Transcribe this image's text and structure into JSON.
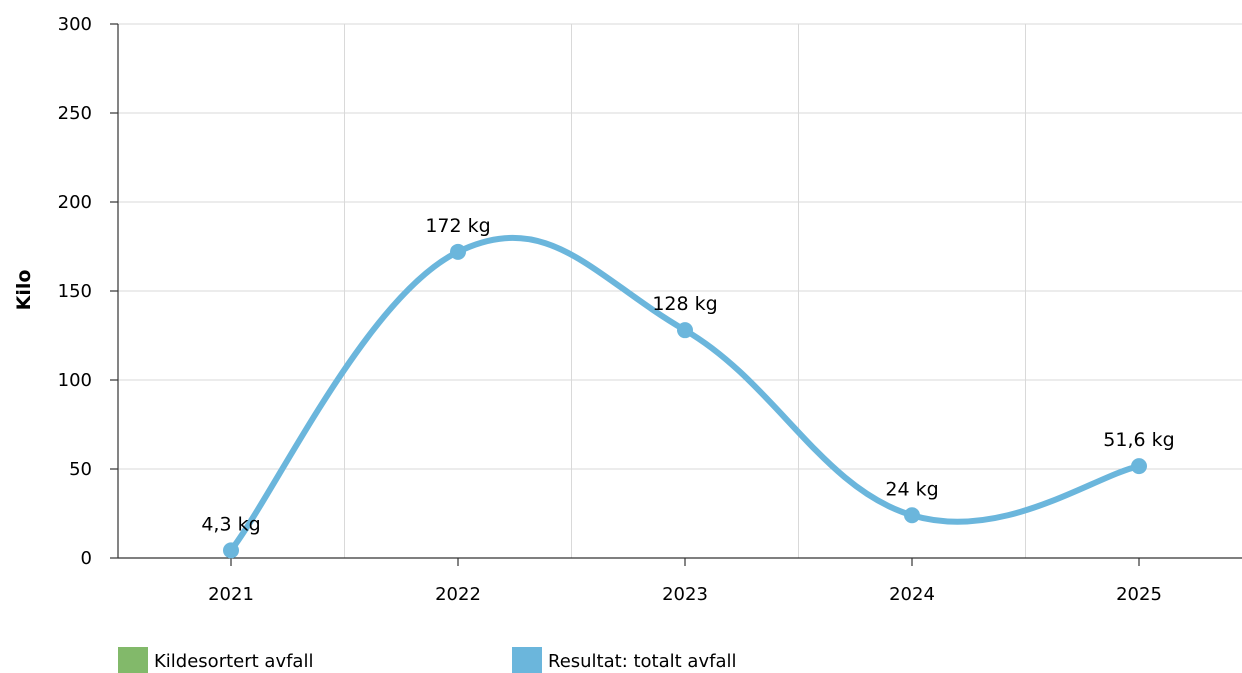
{
  "chart_data": {
    "type": "line",
    "ylabel": "Kilo",
    "xlabel": "",
    "ylim": [
      0,
      300
    ],
    "yticks": [
      0,
      50,
      100,
      150,
      200,
      250,
      300
    ],
    "x": [
      "2021",
      "2022",
      "2023",
      "2024",
      "2025"
    ],
    "series": [
      {
        "name": "Resultat: totalt avfall",
        "values": [
          4.3,
          172,
          128,
          24,
          51.6
        ],
        "labels": [
          "4,3 kg",
          "172 kg",
          "128 kg",
          "24 kg",
          "51,6 kg"
        ],
        "color": "#6bb6dc"
      }
    ],
    "legend": [
      {
        "name": "Kildesortert avfall",
        "color": "#82b96a"
      },
      {
        "name": "Resultat: totalt avfall",
        "color": "#6bb6dc"
      }
    ],
    "legend_position": "bottom-left",
    "grid": true
  }
}
